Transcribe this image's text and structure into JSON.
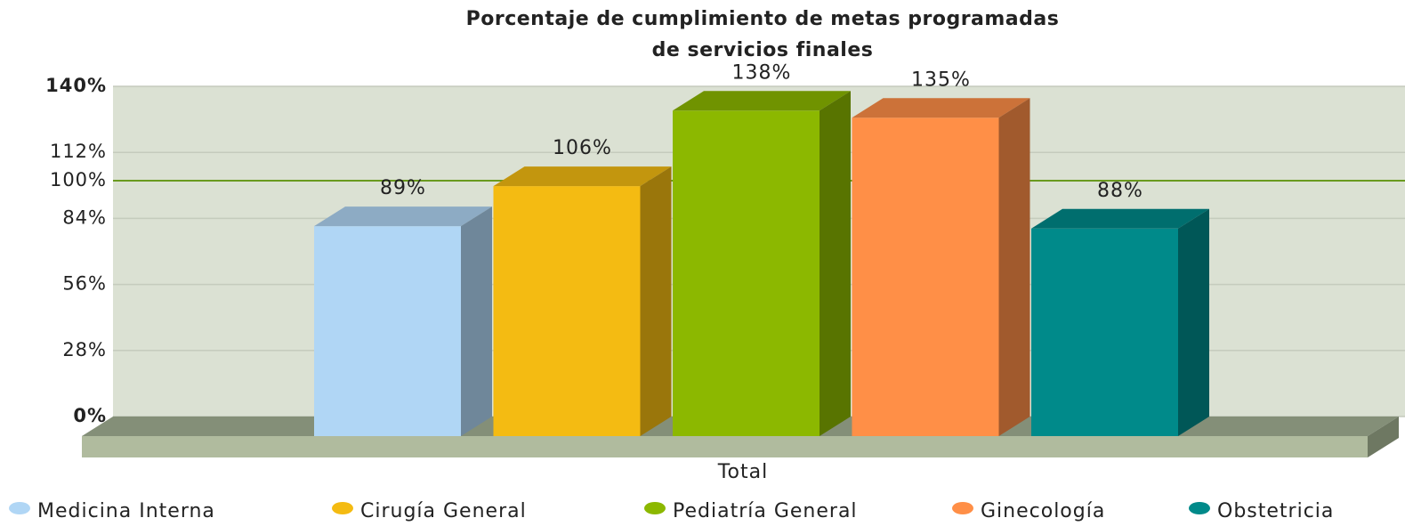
{
  "chart_data": {
    "type": "bar3d",
    "title": [
      "Porcentaje de cumplimiento de metas programadas",
      "de servicios finales"
    ],
    "categories": [
      "Total"
    ],
    "series": [
      {
        "name": "Medicina Interna",
        "color": "#b0d6f5",
        "values": [
          89
        ],
        "value_labels": [
          "89%"
        ]
      },
      {
        "name": "Cirugía General",
        "color": "#f4bb12",
        "values": [
          106
        ],
        "value_labels": [
          "106%"
        ]
      },
      {
        "name": "Pediatría General",
        "color": "#8cb800",
        "values": [
          138
        ],
        "value_labels": [
          "138%"
        ]
      },
      {
        "name": "Ginecología",
        "color": "#ff8f47",
        "values": [
          135
        ],
        "value_labels": [
          "135%"
        ]
      },
      {
        "name": "Obstetricia",
        "color": "#008a8a",
        "values": [
          88
        ],
        "value_labels": [
          "88%"
        ]
      }
    ],
    "ylim": [
      0,
      140
    ],
    "yticks": [
      {
        "value": 0,
        "label": "0%"
      },
      {
        "value": 28,
        "label": "28%"
      },
      {
        "value": 56,
        "label": "56%"
      },
      {
        "value": 84,
        "label": "84%"
      },
      {
        "value": 112,
        "label": "112%"
      },
      {
        "value": 140,
        "label": "140%"
      }
    ],
    "reference_line": {
      "value": 100,
      "label": "100%",
      "color": "#6a9a1f"
    },
    "grid": true
  }
}
